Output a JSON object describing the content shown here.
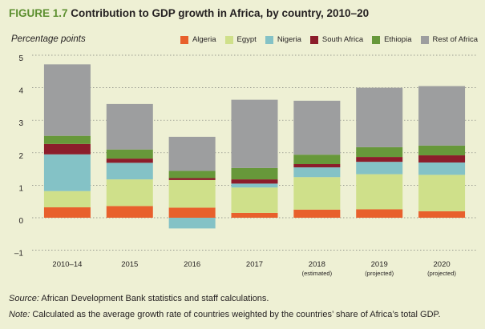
{
  "figure": {
    "label": "FIGURE 1.7",
    "title": "Contribution to GDP growth in Africa, by country, 2010–20"
  },
  "footnotes": {
    "source_label": "Source:",
    "source_text": "African Development Bank statistics and staff calculations.",
    "note_label": "Note:",
    "note_text": "Calculated as the average growth rate of countries weighted by the countries’ share of Africa’s total GDP."
  },
  "chart_data": {
    "type": "bar",
    "stacked": true,
    "title": "Contribution to GDP growth in Africa, by country, 2010–20",
    "ylabel": "Percentage points",
    "xlabel": "",
    "ylim": [
      -1,
      5
    ],
    "yticks": [
      -1,
      0,
      1,
      2,
      3,
      4,
      5
    ],
    "grid": "dashed horizontal",
    "legend_position": "top-right",
    "categories": [
      {
        "label": "2010–14",
        "sub": ""
      },
      {
        "label": "2015",
        "sub": ""
      },
      {
        "label": "2016",
        "sub": ""
      },
      {
        "label": "2017",
        "sub": ""
      },
      {
        "label": "2018",
        "sub": "(estimated)"
      },
      {
        "label": "2019",
        "sub": "(projected)"
      },
      {
        "label": "2020",
        "sub": "(projected)"
      }
    ],
    "series": [
      {
        "name": "Algeria",
        "color": "#e8602c",
        "values": [
          0.32,
          0.36,
          0.31,
          0.15,
          0.25,
          0.26,
          0.2
        ]
      },
      {
        "name": "Egypt",
        "color": "#cfe08a",
        "values": [
          0.5,
          0.82,
          0.85,
          0.78,
          1.0,
          1.08,
          1.12
        ]
      },
      {
        "name": "Nigeria",
        "color": "#84c2c6",
        "values": [
          1.13,
          0.51,
          -0.33,
          0.12,
          0.3,
          0.38,
          0.38
        ]
      },
      {
        "name": "South Africa",
        "color": "#8c1d2b",
        "values": [
          0.32,
          0.13,
          0.06,
          0.13,
          0.1,
          0.15,
          0.22
        ]
      },
      {
        "name": "Ethiopia",
        "color": "#67983a",
        "values": [
          0.25,
          0.28,
          0.22,
          0.35,
          0.29,
          0.3,
          0.3
        ]
      },
      {
        "name": "Rest of Africa",
        "color": "#9d9e9f",
        "values": [
          2.2,
          1.4,
          1.05,
          2.1,
          1.66,
          1.83,
          1.83
        ]
      }
    ]
  }
}
